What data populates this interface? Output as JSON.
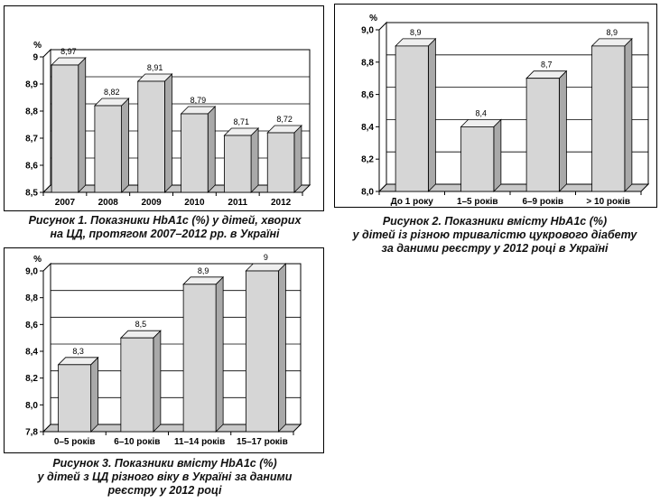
{
  "chart_data": [
    {
      "type": "bar",
      "unit": "%",
      "categories": [
        "2007",
        "2008",
        "2009",
        "2010",
        "2011",
        "2012"
      ],
      "values": [
        8.97,
        8.82,
        8.91,
        8.79,
        8.71,
        8.72
      ],
      "value_labels": [
        "8,97",
        "8,82",
        "8,91",
        "8,79",
        "8,71",
        "8,72"
      ],
      "ylim": [
        8.5,
        9.0
      ],
      "yticks": [
        8.5,
        8.6,
        8.7,
        8.8,
        8.9,
        9.0
      ],
      "ytick_labels": [
        "8,5",
        "8,6",
        "8,7",
        "8,8",
        "8,9",
        "9"
      ],
      "grid": true,
      "caption": [
        "Рисунок 1. Показники HbA1c (%) у дітей, хворих",
        "на ЦД, протягом 2007–2012 рр. в Україні"
      ]
    },
    {
      "type": "bar",
      "unit": "%",
      "categories": [
        "До 1 року",
        "1–5 років",
        "6–9 років",
        "> 10 років"
      ],
      "values": [
        8.9,
        8.4,
        8.7,
        8.9
      ],
      "value_labels": [
        "8,9",
        "8,4",
        "8,7",
        "8,9"
      ],
      "ylim": [
        8.0,
        9.0
      ],
      "yticks": [
        8.0,
        8.2,
        8.4,
        8.6,
        8.8,
        9.0
      ],
      "ytick_labels": [
        "8,0",
        "8,2",
        "8,4",
        "8,6",
        "8,8",
        "9,0"
      ],
      "grid": true,
      "caption": [
        "Рисунок 2. Показники вмісту HbA1c (%)",
        "у дітей із різною тривалістю цукрового діабету",
        "за даними реєстру у 2012 році в Україні"
      ]
    },
    {
      "type": "bar",
      "unit": "%",
      "categories": [
        "0–5 років",
        "6–10 років",
        "11–14 років",
        "15–17 років"
      ],
      "values": [
        8.3,
        8.5,
        8.9,
        9.0
      ],
      "value_labels": [
        "8,3",
        "8,5",
        "8,9",
        "9"
      ],
      "ylim": [
        7.8,
        9.0
      ],
      "yticks": [
        7.8,
        8.0,
        8.2,
        8.4,
        8.6,
        8.8,
        9.0
      ],
      "ytick_labels": [
        "7,8",
        "8,0",
        "8,2",
        "8,4",
        "8,6",
        "8,8",
        "9,0"
      ],
      "grid": true,
      "caption": [
        "Рисунок 3. Показники вмісту HbA1c (%)",
        "у дітей з ЦД різного віку в Україні за даними",
        "реєстру у 2012 році"
      ]
    }
  ],
  "colors": {
    "bar_front": "#d6d6d6",
    "bar_side": "#a9a9a9",
    "bar_top": "#efefef",
    "floor": "#c8c8c8",
    "stroke": "#000000"
  }
}
